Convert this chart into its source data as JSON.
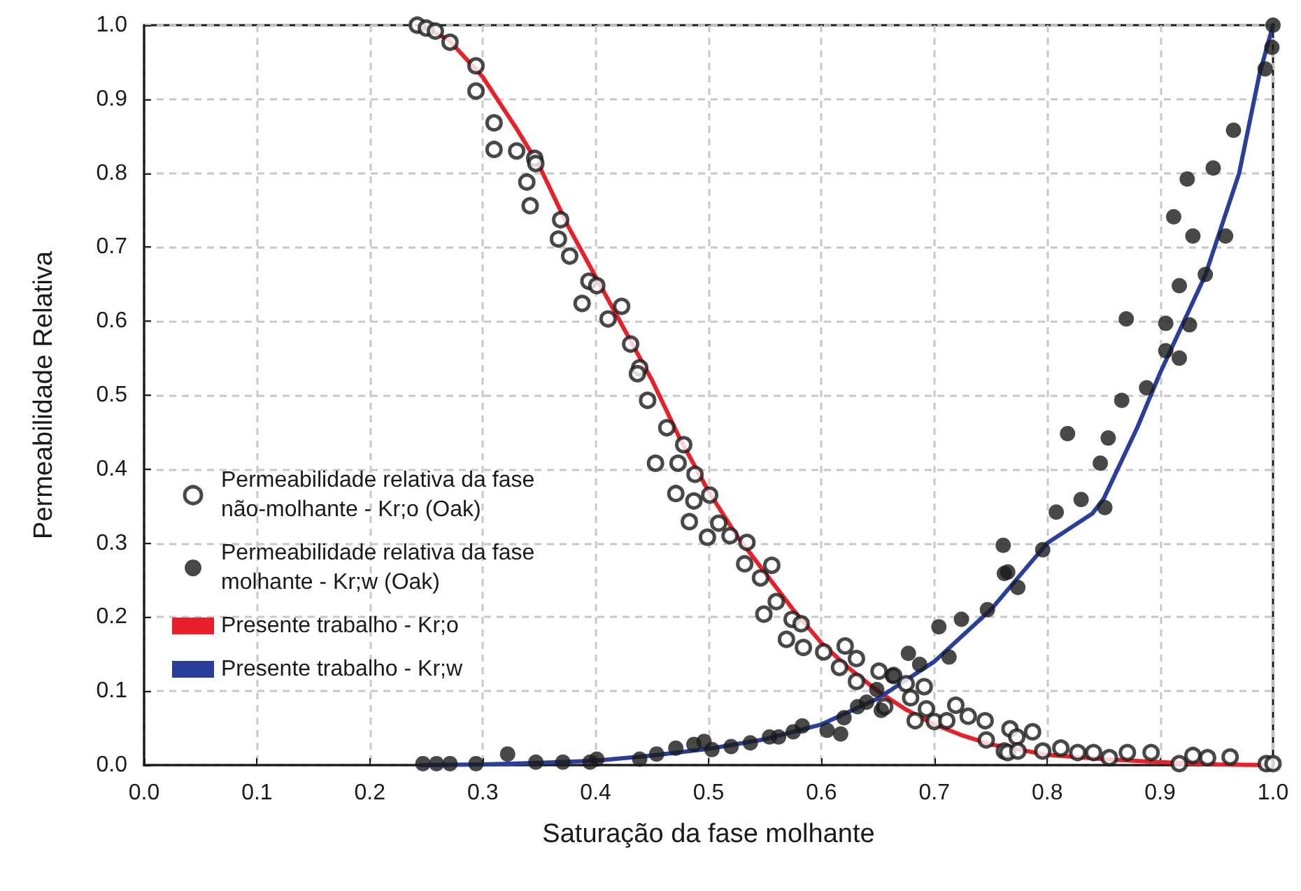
{
  "chart_data": {
    "type": "scatter",
    "xlabel": "Saturação da fase molhante",
    "ylabel": "Permeabilidade Relativa",
    "xlim": [
      0,
      1
    ],
    "ylim": [
      0,
      1
    ],
    "xticks": [
      {
        "value": 0,
        "label": "0.0"
      },
      0.1,
      0.2,
      0.3,
      0.4,
      0.5,
      0.6,
      0.7,
      0.8,
      0.9,
      {
        "value": 1,
        "label": "1.0"
      }
    ],
    "yticks": [
      {
        "value": 0,
        "label": "0.0"
      },
      0.1,
      0.2,
      0.3,
      0.4,
      0.5,
      0.6,
      0.7,
      0.8,
      0.9,
      {
        "value": 1,
        "label": "1.0"
      }
    ],
    "grid": true,
    "legend": "left",
    "marker": "circle",
    "series": [
      {
        "name": "Permeabilidade relativa da fase não-molhante - Kr;o (Oak)",
        "color": "#1a1a1a",
        "x": [
          0.242,
          0.25,
          0.258,
          0.271,
          0.294,
          0.294,
          0.31,
          0.31,
          0.33,
          0.346,
          0.347,
          0.339,
          0.342,
          0.369,
          0.367,
          0.377,
          0.394,
          0.401,
          0.388,
          0.411,
          0.423,
          0.431,
          0.439,
          0.437,
          0.446,
          0.463,
          0.478,
          0.453,
          0.473,
          0.488,
          0.471,
          0.487,
          0.501,
          0.483,
          0.509,
          0.499,
          0.519,
          0.534,
          0.532,
          0.556,
          0.546,
          0.56,
          0.549,
          0.574,
          0.582,
          0.569,
          0.584,
          0.602,
          0.621,
          0.631,
          0.616,
          0.631,
          0.651,
          0.664,
          0.675,
          0.691,
          0.656,
          0.679,
          0.693,
          0.683,
          0.7,
          0.711,
          0.719,
          0.73,
          0.745,
          0.746,
          0.762,
          0.767,
          0.773,
          0.765,
          0.774,
          0.787,
          0.796,
          0.812,
          0.827,
          0.841,
          0.855,
          0.871,
          0.892,
          0.917,
          0.929,
          0.942,
          0.962,
          0.994,
          1.0
        ],
        "values": [
          1.0,
          0.996,
          0.992,
          0.977,
          0.945,
          0.911,
          0.868,
          0.832,
          0.83,
          0.82,
          0.813,
          0.788,
          0.756,
          0.737,
          0.711,
          0.688,
          0.654,
          0.648,
          0.624,
          0.603,
          0.62,
          0.569,
          0.537,
          0.529,
          0.493,
          0.456,
          0.433,
          0.408,
          0.408,
          0.393,
          0.367,
          0.357,
          0.365,
          0.329,
          0.327,
          0.308,
          0.31,
          0.301,
          0.272,
          0.27,
          0.253,
          0.221,
          0.204,
          0.197,
          0.191,
          0.17,
          0.159,
          0.153,
          0.161,
          0.144,
          0.132,
          0.113,
          0.127,
          0.121,
          0.11,
          0.106,
          0.079,
          0.091,
          0.076,
          0.06,
          0.059,
          0.06,
          0.081,
          0.066,
          0.06,
          0.034,
          0.019,
          0.049,
          0.038,
          0.017,
          0.019,
          0.045,
          0.019,
          0.023,
          0.017,
          0.017,
          0.01,
          0.017,
          0.017,
          0.002,
          0.013,
          0.01,
          0.011,
          0.002,
          0.002
        ]
      },
      {
        "name": "Permeabilidade relativa da fase molhante - Kr;w (Oak)",
        "color": "#1a1a1a",
        "x": [
          0.247,
          0.259,
          0.271,
          0.294,
          0.322,
          0.347,
          0.371,
          0.395,
          0.401,
          0.439,
          0.454,
          0.471,
          0.487,
          0.496,
          0.503,
          0.52,
          0.537,
          0.554,
          0.562,
          0.575,
          0.583,
          0.605,
          0.617,
          0.62,
          0.632,
          0.64,
          0.649,
          0.653,
          0.663,
          0.677,
          0.687,
          0.713,
          0.704,
          0.724,
          0.747,
          0.761,
          0.762,
          0.765,
          0.774,
          0.796,
          0.808,
          0.818,
          0.83,
          0.851,
          0.847,
          0.854,
          0.866,
          0.888,
          0.905,
          0.917,
          0.87,
          0.905,
          0.926,
          0.917,
          0.94,
          0.912,
          0.929,
          0.958,
          0.924,
          0.947,
          0.965,
          0.993,
          0.999,
          1.0
        ],
        "values": [
          0.002,
          0.002,
          0.002,
          0.002,
          0.015,
          0.004,
          0.004,
          0.004,
          0.008,
          0.008,
          0.015,
          0.023,
          0.028,
          0.032,
          0.021,
          0.025,
          0.03,
          0.038,
          0.038,
          0.045,
          0.053,
          0.047,
          0.042,
          0.064,
          0.079,
          0.085,
          0.102,
          0.074,
          0.121,
          0.151,
          0.136,
          0.146,
          0.187,
          0.197,
          0.21,
          0.297,
          0.259,
          0.261,
          0.24,
          0.291,
          0.342,
          0.448,
          0.359,
          0.348,
          0.408,
          0.442,
          0.493,
          0.51,
          0.56,
          0.55,
          0.603,
          0.597,
          0.595,
          0.648,
          0.663,
          0.741,
          0.715,
          0.715,
          0.792,
          0.807,
          0.858,
          0.941,
          0.97,
          1.0
        ]
      },
      {
        "name": "Presente trabalho - Kr;o",
        "type": "line",
        "color": "#e8202a",
        "marker": "none",
        "x": [
          0.245,
          0.27,
          0.3,
          0.33,
          0.35,
          0.375,
          0.4,
          0.425,
          0.45,
          0.475,
          0.5,
          0.525,
          0.55,
          0.575,
          0.6,
          0.625,
          0.65,
          0.675,
          0.7,
          0.725,
          0.75,
          0.8,
          0.85,
          0.9,
          0.95,
          1.0
        ],
        "values": [
          1.0,
          0.98,
          0.93,
          0.86,
          0.81,
          0.73,
          0.66,
          0.59,
          0.52,
          0.44,
          0.37,
          0.31,
          0.26,
          0.21,
          0.165,
          0.13,
          0.1,
          0.075,
          0.055,
          0.04,
          0.028,
          0.014,
          0.008,
          0.004,
          0.001,
          0.0
        ]
      },
      {
        "name": "Presente trabalho - Kr;w",
        "type": "line",
        "color": "#2a3f9a",
        "marker": "none",
        "x": [
          0.245,
          0.3,
          0.35,
          0.4,
          0.45,
          0.5,
          0.55,
          0.6,
          0.65,
          0.7,
          0.75,
          0.8,
          0.84,
          0.85,
          0.88,
          0.9,
          0.94,
          0.97,
          0.988,
          1.0
        ],
        "values": [
          0.0,
          0.001,
          0.003,
          0.006,
          0.013,
          0.022,
          0.035,
          0.055,
          0.09,
          0.14,
          0.21,
          0.3,
          0.34,
          0.36,
          0.457,
          0.53,
          0.662,
          0.8,
          0.934,
          1.0
        ]
      }
    ]
  }
}
